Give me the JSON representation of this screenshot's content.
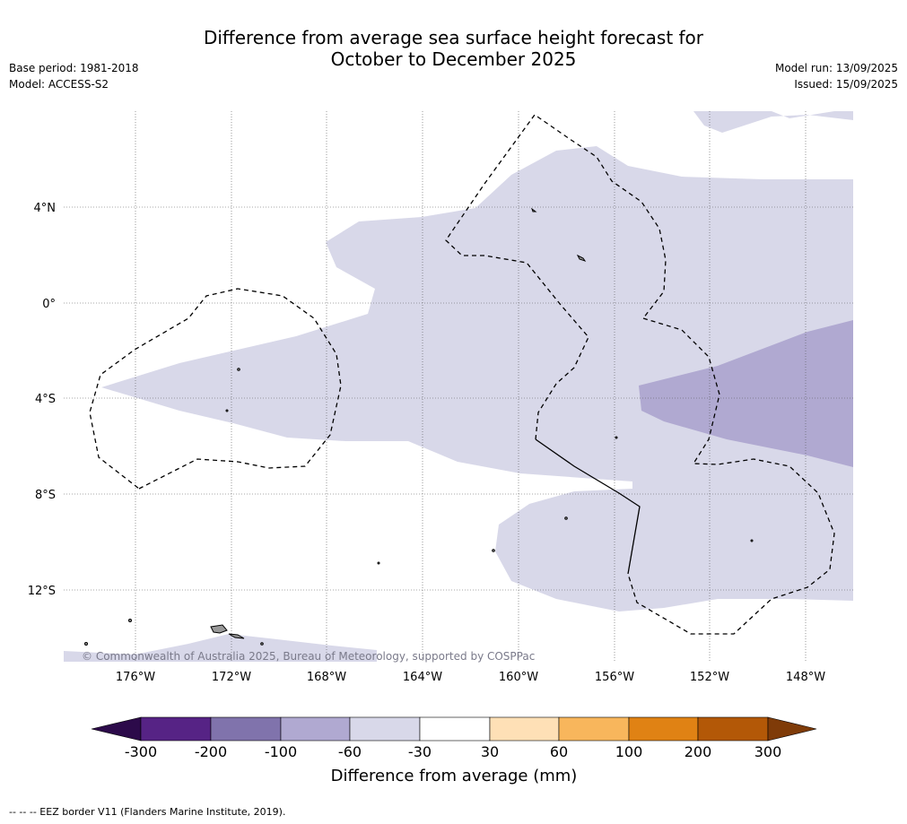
{
  "title": {
    "line1": "Difference from average sea surface height forecast for",
    "line2": "October to December 2025"
  },
  "meta_left": {
    "base_period": "Base period: 1981-2018",
    "model": "Model: ACCESS-S2"
  },
  "meta_right": {
    "model_run": "Model run: 13/09/2025",
    "issued": "Issued: 15/09/2025"
  },
  "map": {
    "lon_ticks": [
      "176°W",
      "172°W",
      "168°W",
      "164°W",
      "160°W",
      "156°W",
      "152°W",
      "148°W"
    ],
    "lat_ticks": [
      "4°N",
      "0°",
      "4°S",
      "8°S",
      "12°S"
    ],
    "copyright": "© Commonwealth of Australia 2025, Bureau of Meteorology, supported by COSPPac",
    "colors": {
      "band_-60_-30": "#d8d8e9",
      "band_-100_-60": "#b0a9d1",
      "land": "#999999"
    }
  },
  "colorbar": {
    "title": "Difference from average (mm)",
    "ticks": [
      "-300",
      "-200",
      "-100",
      "-60",
      "-30",
      "30",
      "60",
      "100",
      "200",
      "300"
    ],
    "colors": [
      "#2c0a4a",
      "#562385",
      "#8073ac",
      "#b0a9d1",
      "#d8d8e9",
      "#ffffff",
      "#fee0b6",
      "#f8b65c",
      "#e08214",
      "#b35807",
      "#7f3b08"
    ]
  },
  "footnote": "--  --  -- EEZ border V11 (Flanders Marine Institute, 2019)."
}
